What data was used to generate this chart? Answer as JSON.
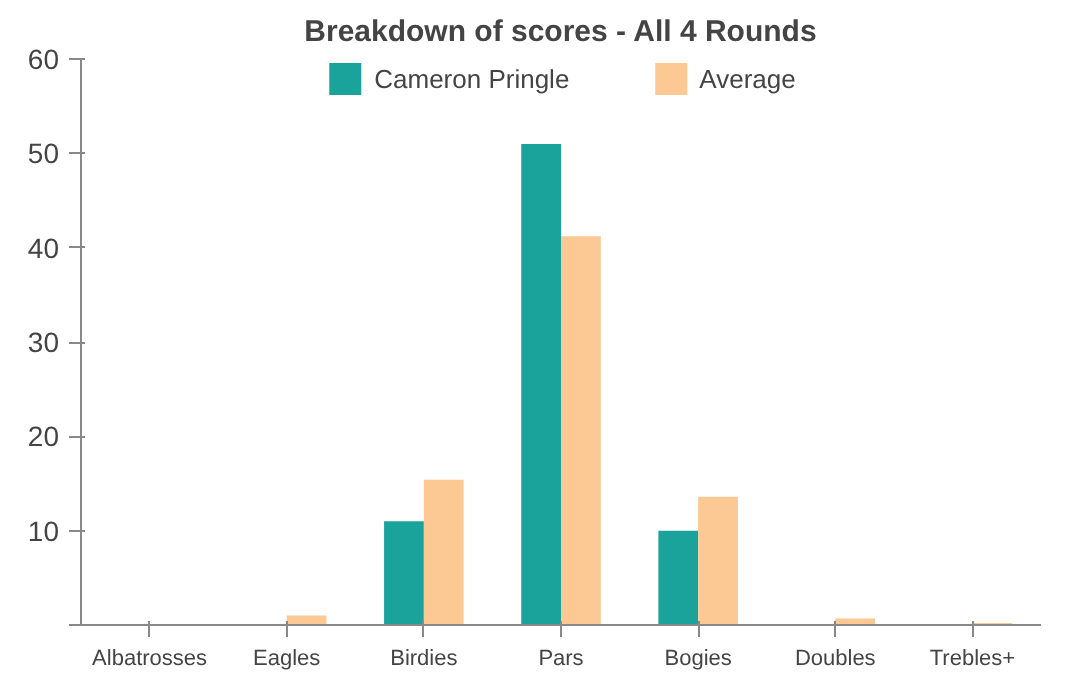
{
  "chart_data": {
    "type": "bar",
    "title": "Breakdown of scores - All 4 Rounds",
    "categories": [
      "Albatrosses",
      "Eagles",
      "Birdies",
      "Pars",
      "Bogies",
      "Doubles",
      "Trebles+"
    ],
    "series": [
      {
        "name": "Cameron Pringle",
        "color": "#1aa39a",
        "values": [
          0,
          0,
          11,
          51,
          10,
          0,
          0
        ]
      },
      {
        "name": "Average",
        "color": "#fcc894",
        "values": [
          0,
          1.0,
          15.4,
          41.2,
          13.6,
          0.7,
          0.2
        ]
      }
    ],
    "ylim": [
      0,
      60
    ],
    "yticks": [
      {
        "value": 0,
        "label": null
      },
      10,
      20,
      30,
      40,
      50,
      60
    ],
    "grid": false,
    "legend": "top"
  }
}
